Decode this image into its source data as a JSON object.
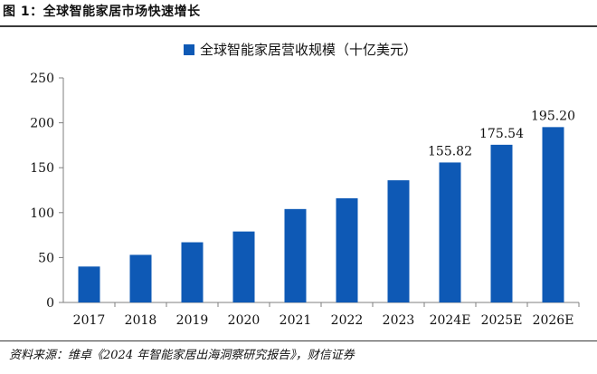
{
  "figure": {
    "title": "图 1：全球智能家居市场快速增长",
    "source": "资料来源：维卓《2024 年智能家居出海洞察研究报告》，财信证券"
  },
  "colors": {
    "bar": "#0E59B5",
    "axis": "#7f7f7f"
  },
  "chart_data": {
    "type": "bar",
    "title": "",
    "xlabel": "",
    "ylabel": "",
    "categories": [
      "2017",
      "2018",
      "2019",
      "2020",
      "2021",
      "2022",
      "2023",
      "2024E",
      "2025E",
      "2026E"
    ],
    "series": [
      {
        "name": "全球智能家居营收规模（十亿美元）",
        "values": [
          40,
          53,
          67,
          79,
          104,
          116,
          136,
          155.82,
          175.54,
          195.2
        ],
        "data_labels": [
          null,
          null,
          null,
          null,
          null,
          null,
          null,
          "155.82",
          "175.54",
          "195.20"
        ]
      }
    ],
    "ylim": [
      0,
      250
    ],
    "yticks": [
      0,
      50,
      100,
      150,
      200,
      250
    ],
    "grid": false,
    "legend": "top-center"
  }
}
